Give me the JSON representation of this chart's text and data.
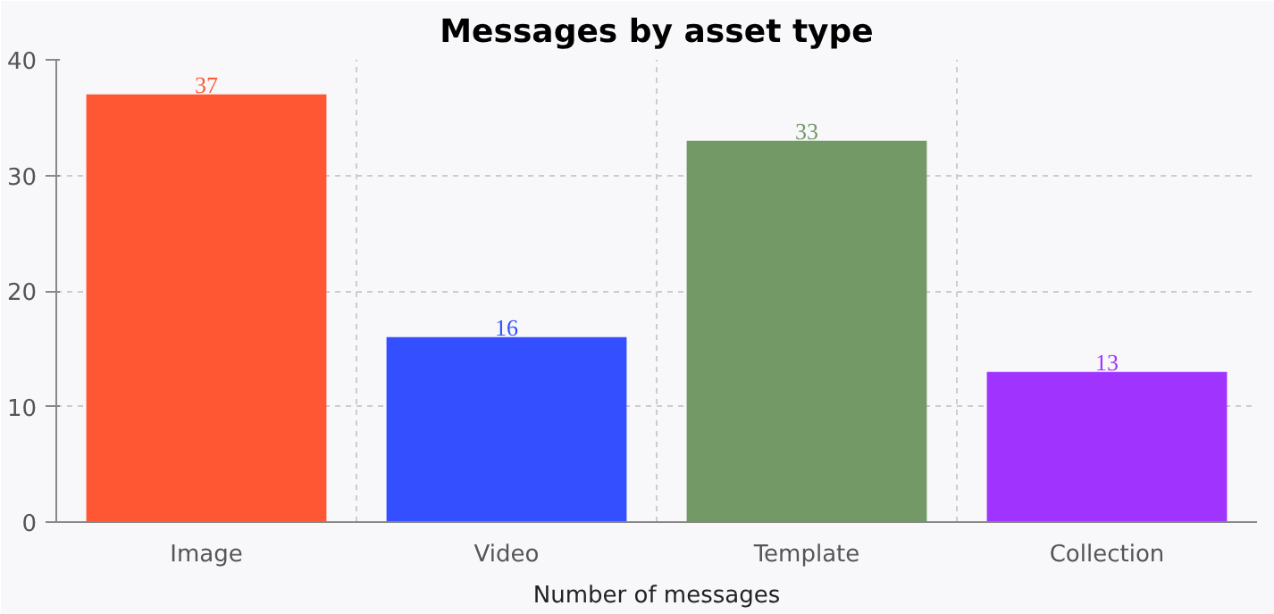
{
  "chart_data": {
    "type": "bar",
    "title": "Messages by asset type",
    "xlabel": "Number of messages",
    "categories": [
      "Image",
      "Video",
      "Template",
      "Collection"
    ],
    "values": [
      37,
      16,
      33,
      13
    ],
    "colors": [
      "#ff5733",
      "#334fff",
      "#739966",
      "#a133ff"
    ],
    "ylim": [
      0,
      40
    ],
    "yticks": [
      0,
      10,
      20,
      30,
      40
    ],
    "grid": true,
    "data_labels": true
  }
}
